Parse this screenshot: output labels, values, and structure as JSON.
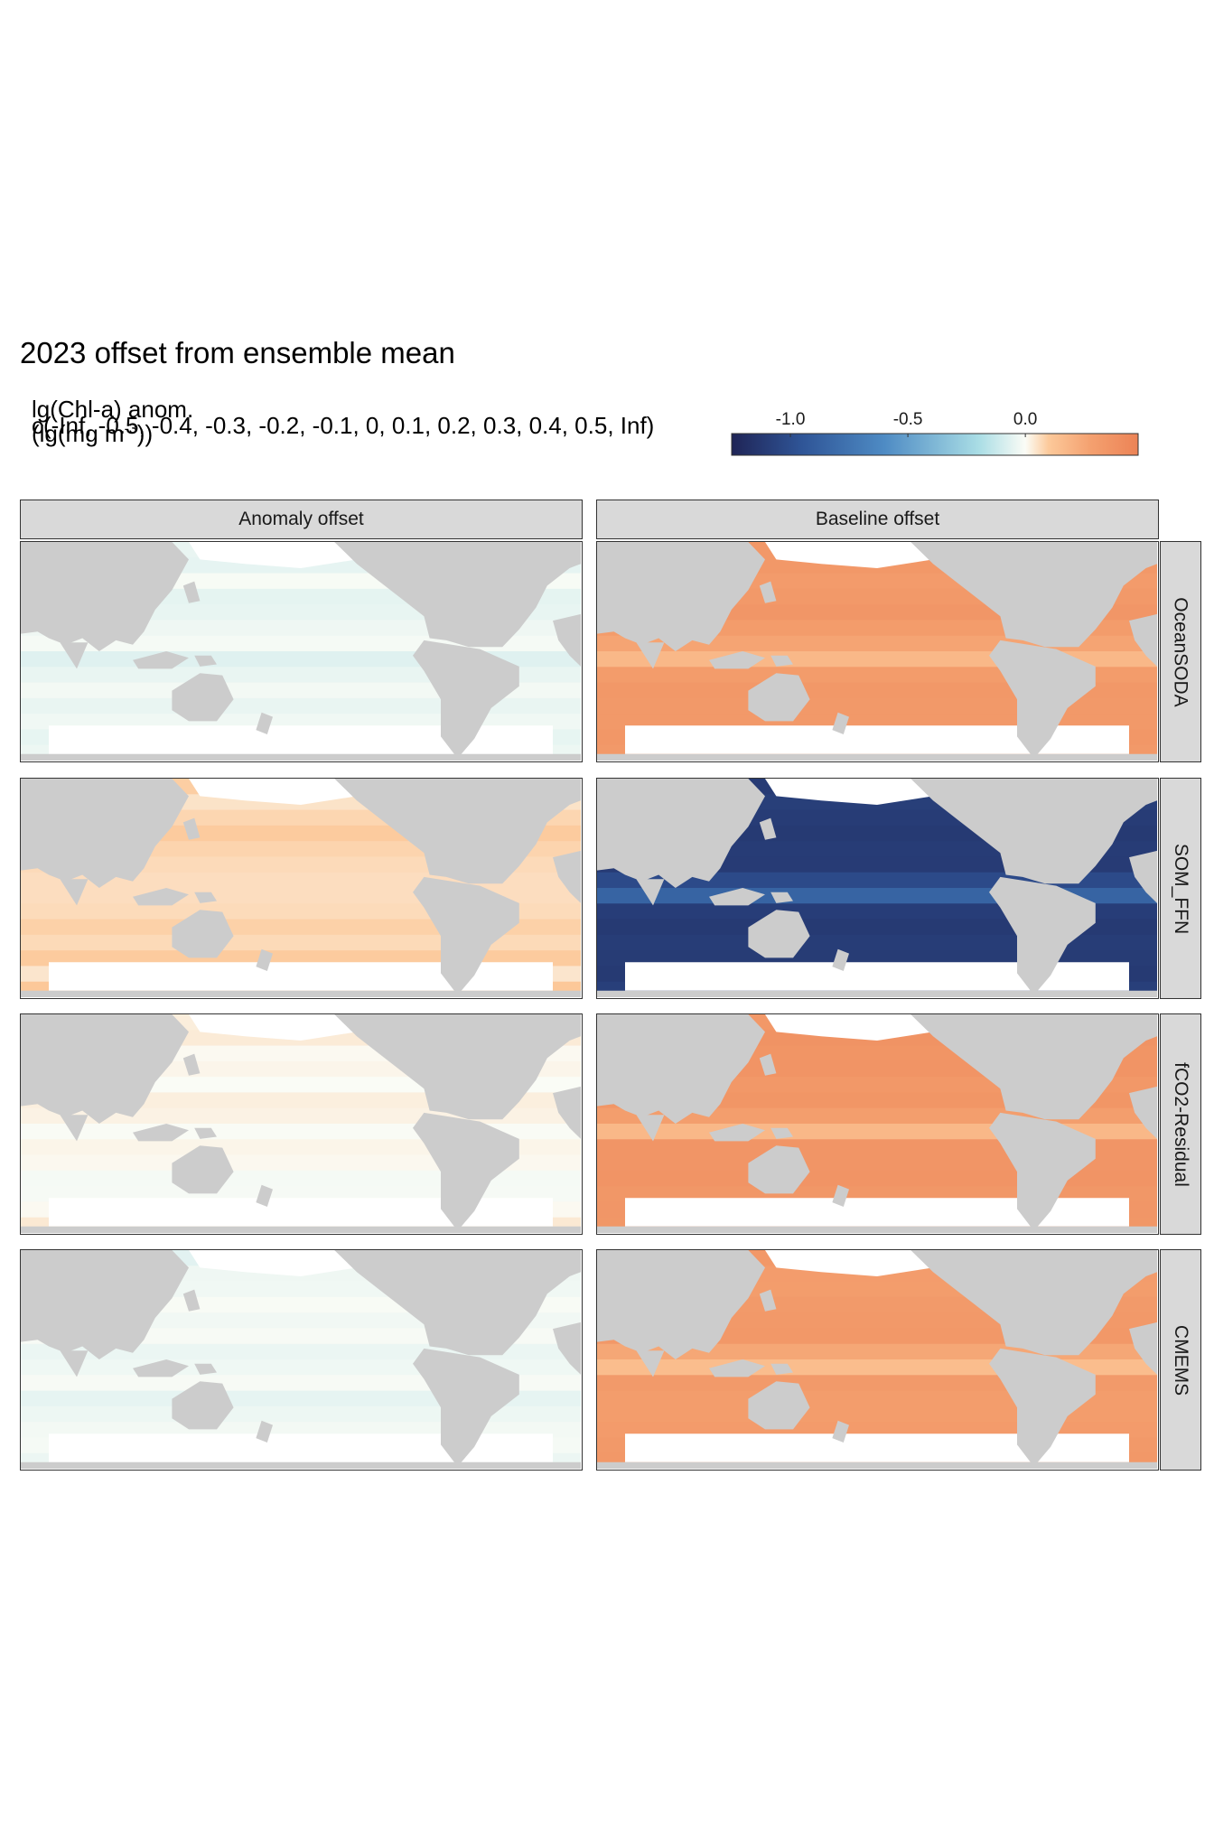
{
  "title": "2023 offset from ensemble mean",
  "legend": {
    "title_line1": "lg(Chl-a) anom.",
    "title_line2_prefix": "(lg(mg m",
    "title_line2_sup": "-3",
    "title_line2_suffix": "))",
    "breaks_text": "c(-Inf, -0.5, -0.4, -0.3, -0.2, -0.1, 0, 0.1, 0.2, 0.3, 0.4, 0.5, Inf)",
    "ticks": [
      "-1.0",
      "-0.5",
      "0.0"
    ],
    "tick_values": [
      -1.0,
      -0.5,
      0.0
    ],
    "range": [
      -1.25,
      0.48
    ],
    "colors": [
      "#1f2456",
      "#2f5597",
      "#4e8bc4",
      "#a9dde5",
      "#fbfcf6",
      "#fcc99a",
      "#f4a06f",
      "#ec8356"
    ]
  },
  "columns": [
    "Anomaly offset",
    "Baseline offset"
  ],
  "rows": [
    "OceanSODA",
    "SOM_FFN",
    "fCO2-Residual",
    "CMEMS"
  ],
  "chart_data": {
    "type": "heatmap",
    "title": "2023 offset from ensemble mean",
    "fill_label": "lg(Chl-a) anom. (lg(mg m-3))",
    "x": "longitude",
    "y": "latitude",
    "facets": [
      {
        "row": "OceanSODA",
        "column": "Anomaly offset",
        "typical_value": -0.04
      },
      {
        "row": "OceanSODA",
        "column": "Baseline offset",
        "typical_value": 0.33
      },
      {
        "row": "SOM_FFN",
        "column": "Anomaly offset",
        "typical_value": 0.08
      },
      {
        "row": "SOM_FFN",
        "column": "Baseline offset",
        "typical_value": -1.1
      },
      {
        "row": "fCO2-Residual",
        "column": "Anomaly offset",
        "typical_value": 0.01
      },
      {
        "row": "fCO2-Residual",
        "column": "Baseline offset",
        "typical_value": 0.35
      },
      {
        "row": "CMEMS",
        "column": "Anomaly offset",
        "typical_value": -0.03
      },
      {
        "row": "CMEMS",
        "column": "Baseline offset",
        "typical_value": 0.32
      }
    ]
  },
  "colors": {
    "land": "#cccccc",
    "no_data": "#ffffff",
    "strip_bg": "#d9d9d9",
    "strip_border": "#333333"
  }
}
